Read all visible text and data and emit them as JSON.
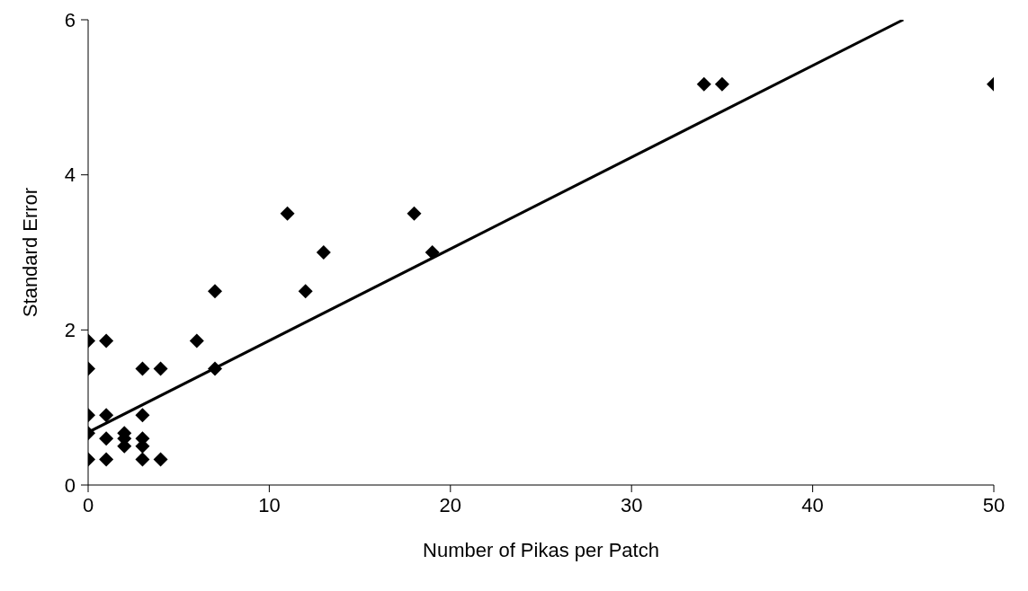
{
  "chart_data": {
    "type": "scatter",
    "xlabel": "Number of Pikas per Patch",
    "ylabel": "Standard Error",
    "xlim": [
      0,
      50
    ],
    "xticks": [
      0,
      10,
      20,
      30,
      40,
      50
    ],
    "ylim": [
      0,
      6
    ],
    "yticks": [
      0,
      2,
      4,
      6
    ],
    "grid": false,
    "legend": false,
    "marker": "diamond",
    "series": [
      {
        "color": "#000000",
        "x": [
          0,
          1,
          6,
          0,
          3,
          4,
          7,
          0,
          1,
          3,
          0,
          2,
          1,
          2,
          2,
          3,
          3,
          0,
          1,
          3,
          4,
          7,
          12,
          11,
          18,
          13,
          19,
          34,
          35,
          50
        ],
        "values": [
          1.86,
          1.86,
          1.86,
          1.5,
          1.5,
          1.5,
          1.5,
          0.9,
          0.9,
          0.9,
          0.67,
          0.67,
          0.6,
          0.6,
          0.5,
          0.6,
          0.5,
          0.33,
          0.33,
          0.33,
          0.33,
          2.5,
          2.5,
          3.5,
          3.5,
          3.0,
          3.0,
          5.17,
          5.17,
          5.17
        ]
      },
      {
        "type": "line",
        "marker": "none",
        "color": "#000000",
        "x": [
          0,
          45
        ],
        "values": [
          0.68,
          6
        ]
      }
    ]
  }
}
